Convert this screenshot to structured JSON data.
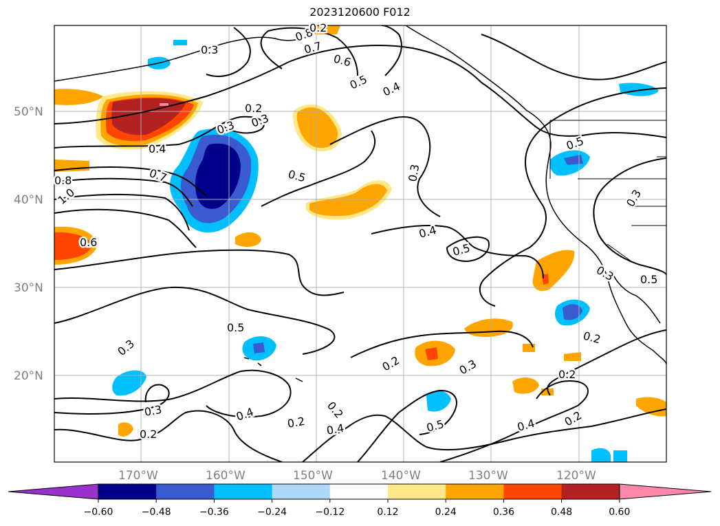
{
  "title": "2023120600 F012",
  "lat_labels": [
    "50°N",
    "40°N",
    "30°N",
    "20°N"
  ],
  "lon_labels": [
    "170°W",
    "160°W",
    "150°W",
    "140°W",
    "130°W",
    "120°W"
  ],
  "contour_labels": [
    "0.3",
    "0.8",
    "0.7",
    "0.6",
    "0.5",
    "0.4",
    "0.3",
    "0.2",
    "0.3",
    "0.4",
    "0.7",
    "0.8",
    "1.0",
    "0.5",
    "0.3",
    "0.6",
    "0.4",
    "0.5",
    "0.5",
    "0.3",
    "0.5",
    "0.5",
    "0.3",
    "0.2",
    "0.3",
    "0.2",
    "0.4",
    "0.2",
    "0.4",
    "0.2",
    "0.2",
    "0.3",
    "0.2",
    "0.5",
    "0.4",
    "0.2",
    "0.3",
    "0.2"
  ],
  "colorbar": {
    "colors": [
      "#9932cc",
      "#00008b",
      "#3a5bd0",
      "#00bfff",
      "#add8f7",
      "#ffffff",
      "#ffe88a",
      "#ffa500",
      "#ff4500",
      "#b22222",
      "#ff88aa"
    ],
    "tick_labels": [
      "−0.60",
      "−0.48",
      "−0.36",
      "−0.24",
      "−0.12",
      "0.12",
      "0.24",
      "0.36",
      "0.48",
      "0.60"
    ]
  }
}
